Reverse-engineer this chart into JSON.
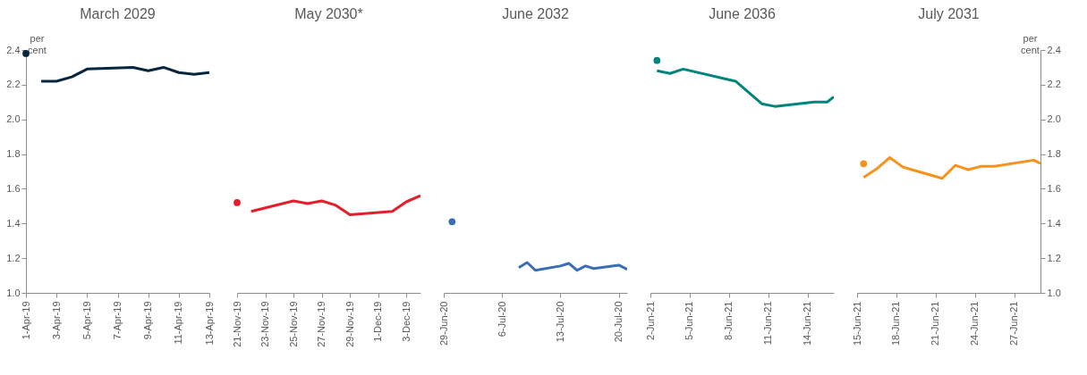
{
  "chart_data": [
    {
      "type": "line",
      "title": "March 2029",
      "ylabel": "per cent",
      "xlim": [
        "--04-01",
        "--04-13"
      ],
      "xticks": [
        {
          "value": "--04-01",
          "label": "1-Apr-19"
        },
        {
          "value": "--04-03",
          "label": "3-Apr-19"
        },
        {
          "value": "--04-05",
          "label": "5-Apr-19"
        },
        {
          "value": "--04-07",
          "label": "7-Apr-19"
        },
        {
          "value": "--04-09",
          "label": "9-Apr-19"
        },
        {
          "value": "--04-11",
          "label": "11-Apr-19"
        },
        {
          "value": "--04-13",
          "label": "13-Apr-19"
        }
      ],
      "ylim": [
        1.0,
        2.4
      ],
      "yticks": [
        {
          "value": 1,
          "label": "1.0"
        },
        {
          "value": 1.2,
          "label": "1.2"
        },
        {
          "value": 1.4,
          "label": "1.4"
        },
        {
          "value": 1.6,
          "label": "1.6"
        },
        {
          "value": 1.8,
          "label": "1.8"
        },
        {
          "value": 2,
          "label": "2.0"
        },
        {
          "value": 2.2,
          "label": "2.2"
        },
        {
          "value": 2.4,
          "label": "2.4"
        }
      ],
      "series": [
        {
          "type": "scatter",
          "color": "#06263f",
          "x": [
            "--04-01"
          ],
          "values": [
            2.38
          ]
        },
        {
          "type": "line",
          "color": "#06263f",
          "x": [
            "--04-02",
            "--04-03",
            "--04-04",
            "--04-05",
            "--04-08",
            "--04-09",
            "--04-10",
            "--04-11",
            "--04-12",
            "--04-13"
          ],
          "values": [
            2.22,
            2.22,
            2.245,
            2.29,
            2.3,
            2.28,
            2.3,
            2.27,
            2.26,
            2.27
          ]
        }
      ]
    },
    {
      "type": "line",
      "title": "May 2030*",
      "tick_labels": "x",
      "xlim": [
        "--11-21",
        "--12-04"
      ],
      "xticks": [
        {
          "value": "--11-21",
          "label": "21-Nov-19"
        },
        {
          "value": "--11-23",
          "label": "23-Nov-19"
        },
        {
          "value": "--11-25",
          "label": "25-Nov-19"
        },
        {
          "value": "--11-27",
          "label": "27-Nov-19"
        },
        {
          "value": "--11-29",
          "label": "29-Nov-19"
        },
        {
          "value": "--12-01",
          "label": "1-Dec-19"
        },
        {
          "value": "--12-03",
          "label": "3-Dec-19"
        }
      ],
      "ylim": [
        1.0,
        2.4
      ],
      "series": [
        {
          "type": "scatter",
          "color": "#e31f2b",
          "x": [
            "--11-21"
          ],
          "values": [
            1.52
          ]
        },
        {
          "type": "line",
          "color": "#e31f2b",
          "x": [
            "--11-22",
            "--11-25",
            "--11-26",
            "--11-27",
            "--11-28",
            "--11-29",
            "--12-02",
            "--12-03",
            "--12-04"
          ],
          "values": [
            1.47,
            1.53,
            1.515,
            1.53,
            1.505,
            1.45,
            1.47,
            1.525,
            1.56
          ]
        }
      ]
    },
    {
      "type": "line",
      "title": "June 2032",
      "tick_labels": "x",
      "xlim": [
        "--06-29",
        "--07-21"
      ],
      "xticks": [
        {
          "value": "--06-29",
          "label": "29-Jun-20"
        },
        {
          "value": "--07-06",
          "label": "6-Jul-20"
        },
        {
          "value": "--07-13",
          "label": "13-Jul-20"
        },
        {
          "value": "--07-20",
          "label": "20-Jul-20"
        }
      ],
      "ylim": [
        1.0,
        2.4
      ],
      "series": [
        {
          "type": "scatter",
          "color": "#3a6fb3",
          "x": [
            "--06-30"
          ],
          "values": [
            1.41
          ]
        },
        {
          "type": "line",
          "color": "#3a6fb3",
          "x": [
            "--07-08",
            "--07-09",
            "--07-10",
            "--07-13",
            "--07-14",
            "--07-15",
            "--07-16",
            "--07-17",
            "--07-20",
            "--07-21"
          ],
          "values": [
            1.145,
            1.175,
            1.13,
            1.155,
            1.17,
            1.13,
            1.155,
            1.14,
            1.16,
            1.135
          ]
        }
      ]
    },
    {
      "type": "line",
      "title": "June 2036",
      "tick_labels": "x",
      "xlim": [
        "--06-02",
        "--06-16"
      ],
      "xticks": [
        {
          "value": "--06-02",
          "label": "2-Jun-21"
        },
        {
          "value": "--06-05",
          "label": "5-Jun-21"
        },
        {
          "value": "--06-08",
          "label": "8-Jun-21"
        },
        {
          "value": "--06-11",
          "label": "11-Jun-21"
        },
        {
          "value": "--06-14",
          "label": "14-Jun-21"
        }
      ],
      "ylim": [
        1.0,
        2.4
      ],
      "series": [
        {
          "type": "scatter",
          "color": "#00857d",
          "x": [
            "--06-02T12:00"
          ],
          "values": [
            2.34
          ]
        },
        {
          "type": "line",
          "color": "#00857d",
          "x": [
            "--06-02T12:00",
            "--06-03T12:00",
            "--06-04T12:00",
            "--06-08T12:00",
            "--06-10T12:00",
            "--06-11T12:00",
            "--06-14T12:00",
            "--06-15T12:00",
            "--06-16"
          ],
          "values": [
            2.28,
            2.265,
            2.29,
            2.22,
            2.09,
            2.075,
            2.1,
            2.1,
            2.13
          ]
        }
      ]
    },
    {
      "type": "line",
      "title": "July 2031",
      "y2label": "per cent",
      "xlim": [
        "--06-15",
        "--06-29"
      ],
      "xticks": [
        {
          "value": "--06-15",
          "label": "15-Jun-21"
        },
        {
          "value": "--06-18",
          "label": "18-Jun-21"
        },
        {
          "value": "--06-21",
          "label": "21-Jun-21"
        },
        {
          "value": "--06-24",
          "label": "24-Jun-21"
        },
        {
          "value": "--06-27",
          "label": "27-Jun-21"
        }
      ],
      "y2lim": [
        1.0,
        2.4
      ],
      "y2ticks": [
        {
          "value": 1,
          "label": "1.0"
        },
        {
          "value": 1.2,
          "label": "1.2"
        },
        {
          "value": 1.4,
          "label": "1.4"
        },
        {
          "value": 1.6,
          "label": "1.6"
        },
        {
          "value": 1.8,
          "label": "1.8"
        },
        {
          "value": 2,
          "label": "2.0"
        },
        {
          "value": 2.2,
          "label": "2.2"
        },
        {
          "value": 2.4,
          "label": "2.4"
        }
      ],
      "series": [
        {
          "type": "scatter",
          "axis": "y2",
          "color": "#f7931d",
          "x": [
            "--06-15T12:00"
          ],
          "values": [
            1.745
          ]
        },
        {
          "type": "line",
          "axis": "y2",
          "color": "#f7931d",
          "x": [
            "--06-15T12:00",
            "--06-16T12:00",
            "--06-17T12:00",
            "--06-18T12:00",
            "--06-21T12:00",
            "--06-22T12:00",
            "--06-23T12:00",
            "--06-24T12:00",
            "--06-25T12:00",
            "--06-28T12:00",
            "--06-29"
          ],
          "values": [
            1.665,
            1.715,
            1.78,
            1.725,
            1.66,
            1.735,
            1.71,
            1.73,
            1.73,
            1.765,
            1.745
          ]
        }
      ]
    }
  ]
}
